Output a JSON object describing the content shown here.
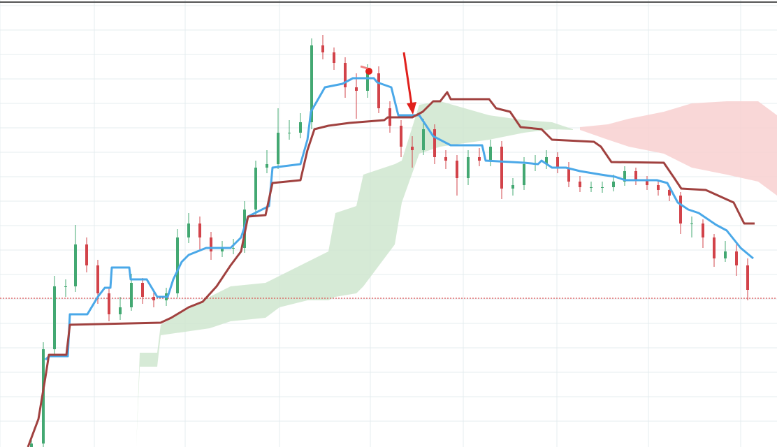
{
  "chart_data": {
    "type": "candlestick",
    "xlim": [
      0,
      1112
    ],
    "ylim": [
      0,
      640
    ],
    "xticks": [
      0,
      135,
      265,
      400,
      530,
      663,
      797,
      928,
      1060
    ],
    "yticks": [
      37,
      72,
      107,
      142,
      177,
      212,
      247,
      282,
      317,
      352,
      387,
      422,
      457,
      492,
      527,
      562,
      597,
      632
    ],
    "grid": true,
    "up_color": "#43a872",
    "down_color": "#d2434a",
    "x": [
      45,
      62,
      78,
      94,
      108,
      124,
      140,
      156,
      172,
      188,
      204,
      220,
      238,
      254,
      270,
      286,
      302,
      318,
      334,
      350,
      366,
      382,
      398,
      414,
      430,
      446,
      462,
      478,
      494,
      510,
      526,
      542,
      558,
      574,
      590,
      606,
      622,
      638,
      654,
      670,
      686,
      702,
      718,
      734,
      750,
      766,
      782,
      798,
      814,
      830,
      846,
      862,
      878,
      894,
      910,
      926,
      942,
      958,
      974,
      990,
      1006,
      1022,
      1038,
      1054,
      1070
    ],
    "open": [
      0,
      5,
      140,
      230,
      230,
      290,
      260,
      220,
      190,
      200,
      235,
      215,
      210,
      220,
      300,
      320,
      300,
      280,
      285,
      285,
      340,
      400,
      405,
      450,
      450,
      465,
      575,
      565,
      550,
      515,
      510,
      535,
      485,
      460,
      430,
      425,
      455,
      415,
      410,
      385,
      415,
      410,
      430,
      370,
      375,
      405,
      405,
      415,
      400,
      380,
      372,
      372,
      372,
      380,
      395,
      382,
      375,
      368,
      360,
      320,
      320,
      300,
      270,
      280,
      260
    ],
    "high": [
      12,
      150,
      245,
      240,
      318,
      300,
      268,
      228,
      215,
      248,
      242,
      225,
      228,
      312,
      335,
      330,
      308,
      295,
      298,
      352,
      410,
      425,
      485,
      468,
      478,
      585,
      590,
      572,
      558,
      535,
      548,
      545,
      495,
      468,
      445,
      470,
      462,
      425,
      418,
      425,
      428,
      440,
      438,
      385,
      415,
      418,
      425,
      422,
      408,
      388,
      380,
      380,
      390,
      402,
      400,
      388,
      382,
      374,
      365,
      330,
      326,
      305,
      295,
      290,
      270
    ],
    "low": [
      0,
      0,
      130,
      215,
      222,
      250,
      205,
      180,
      182,
      195,
      205,
      200,
      202,
      214,
      292,
      280,
      268,
      272,
      276,
      278,
      332,
      392,
      398,
      440,
      442,
      455,
      555,
      540,
      500,
      470,
      500,
      478,
      450,
      415,
      400,
      418,
      405,
      398,
      360,
      375,
      402,
      402,
      355,
      360,
      368,
      395,
      398,
      392,
      372,
      365,
      365,
      364,
      366,
      374,
      375,
      368,
      360,
      352,
      305,
      300,
      285,
      258,
      265,
      245,
      210
    ],
    "close": [
      5,
      140,
      230,
      230,
      290,
      260,
      220,
      190,
      200,
      235,
      215,
      210,
      220,
      300,
      320,
      300,
      280,
      285,
      285,
      340,
      400,
      405,
      450,
      450,
      465,
      575,
      565,
      550,
      515,
      510,
      535,
      485,
      460,
      430,
      425,
      455,
      415,
      410,
      385,
      415,
      410,
      430,
      370,
      375,
      405,
      405,
      415,
      400,
      380,
      372,
      372,
      372,
      380,
      395,
      382,
      375,
      368,
      360,
      320,
      320,
      300,
      270,
      280,
      260,
      225
    ],
    "lines": [
      {
        "color": "#4aa8e8",
        "x": [
          65,
          70,
          97,
          100,
          125,
          140,
          150,
          158,
          160,
          185,
          187,
          210,
          225,
          240,
          248,
          260,
          270,
          295,
          330,
          345,
          355,
          365,
          385,
          390,
          430,
          440,
          445,
          465,
          490,
          505,
          535,
          540,
          560,
          570,
          600,
          610,
          620,
          645,
          690,
          695,
          750,
          770,
          775,
          790,
          810,
          830,
          860,
          880,
          895,
          940,
          955,
          970,
          985,
          1000,
          1025,
          1040,
          1060,
          1078
        ],
        "values": [
          125,
          130,
          130,
          190,
          190,
          215,
          228,
          228,
          257,
          257,
          240,
          240,
          215,
          215,
          240,
          265,
          275,
          285,
          285,
          300,
          330,
          335,
          345,
          400,
          405,
          440,
          480,
          515,
          520,
          528,
          528,
          522,
          515,
          475,
          475,
          460,
          445,
          432,
          432,
          410,
          407,
          405,
          410,
          400,
          400,
          395,
          390,
          387,
          382,
          382,
          378,
          350,
          340,
          335,
          318,
          310,
          285,
          270
        ]
      },
      {
        "color": "#a0413f",
        "x": [
          40,
          55,
          65,
          70,
          95,
          100,
          230,
          245,
          270,
          290,
          310,
          330,
          345,
          355,
          380,
          390,
          430,
          440,
          450,
          470,
          500,
          550,
          555,
          590,
          605,
          620,
          630,
          640,
          645,
          700,
          710,
          730,
          745,
          775,
          790,
          850,
          860,
          875,
          950,
          965,
          975,
          1010,
          1050,
          1065,
          1080
        ],
        "values": [
          0,
          40,
          100,
          132,
          132,
          175,
          178,
          185,
          200,
          208,
          230,
          260,
          280,
          330,
          332,
          378,
          382,
          425,
          455,
          460,
          464,
          468,
          472,
          472,
          480,
          495,
          495,
          508,
          498,
          498,
          485,
          480,
          458,
          455,
          440,
          437,
          430,
          408,
          407,
          385,
          370,
          368,
          350,
          320,
          320
        ]
      }
    ],
    "clouds": [
      {
        "color": "#cfe6cf",
        "x": [
          195,
          200,
          225,
          230,
          300,
          330,
          380,
          400,
          440,
          470,
          480,
          510,
          520,
          565,
          575,
          600,
          630,
          700,
          750,
          790,
          820
        ],
        "upper": [
          0,
          135,
          135,
          175,
          215,
          230,
          235,
          245,
          265,
          280,
          335,
          345,
          390,
          405,
          410,
          490,
          495,
          475,
          468,
          465,
          455
        ],
        "lower": [
          0,
          115,
          115,
          160,
          170,
          180,
          185,
          200,
          210,
          210,
          215,
          220,
          230,
          290,
          350,
          420,
          430,
          440,
          450,
          455,
          454
        ]
      },
      {
        "color": "#f8d0d0",
        "x": [
          830,
          870,
          900,
          950,
          990,
          1040,
          1085,
          1112
        ],
        "upper": [
          458,
          462,
          470,
          480,
          492,
          495,
          495,
          475
        ],
        "lower": [
          454,
          440,
          430,
          420,
          400,
          390,
          380,
          360
        ]
      }
    ],
    "hline": {
      "value": 213,
      "color": "#e03030"
    }
  }
}
